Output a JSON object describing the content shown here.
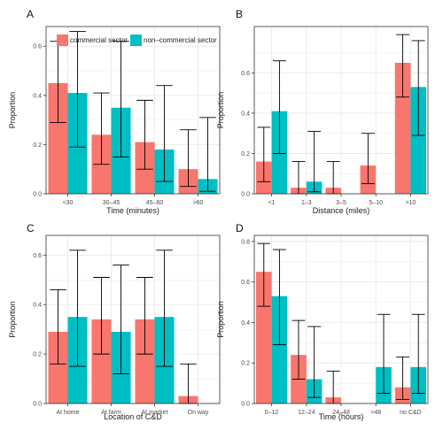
{
  "figure": {
    "legend": {
      "entries": [
        {
          "label": "commercial sector",
          "color": "#F8766D"
        },
        {
          "label": "non–commercial sector",
          "color": "#00BFC4"
        }
      ]
    }
  },
  "colors": {
    "commercial": "#F8766D",
    "noncommercial": "#00BFC4",
    "panel_bg": "#FFFFFF",
    "grid": "#EBEBEB",
    "border": "#333333"
  },
  "chart_data": [
    {
      "panel": "A",
      "type": "bar",
      "xlabel": "Time (minutes)",
      "ylabel": "Proportion",
      "ylim": [
        0,
        0.68
      ],
      "yticks": [
        0.0,
        0.2,
        0.4,
        0.6
      ],
      "ytick_labels": [
        "0.0",
        "0.2",
        "0.4",
        "0.6"
      ],
      "categories": [
        "<30",
        "30–45",
        "45–60",
        ">60"
      ],
      "series": [
        {
          "name": "commercial sector",
          "values": [
            0.45,
            0.24,
            0.21,
            0.1
          ],
          "err_low": [
            0.29,
            0.12,
            0.1,
            0.03
          ],
          "err_high": [
            0.62,
            0.41,
            0.38,
            0.26
          ]
        },
        {
          "name": "non–commercial sector",
          "values": [
            0.41,
            0.35,
            0.18,
            0.06
          ],
          "err_low": [
            0.19,
            0.15,
            0.05,
            0.01
          ],
          "err_high": [
            0.66,
            0.62,
            0.44,
            0.31
          ]
        }
      ],
      "legend": "top-left"
    },
    {
      "panel": "B",
      "type": "bar",
      "xlabel": "Distance (miles)",
      "ylabel": "Proportion",
      "ylim": [
        0,
        0.83
      ],
      "yticks": [
        0.0,
        0.2,
        0.4,
        0.6
      ],
      "ytick_labels": [
        "0.0",
        "0.2",
        "0.4",
        "0.6"
      ],
      "categories": [
        "<1",
        "1–3",
        "3–5",
        "5–10",
        ">10"
      ],
      "series": [
        {
          "name": "commercial sector",
          "values": [
            0.16,
            0.03,
            0.03,
            0.14,
            0.65
          ],
          "err_low": [
            0.06,
            0.0,
            0.0,
            0.05,
            0.48
          ],
          "err_high": [
            0.33,
            0.16,
            0.16,
            0.3,
            0.79
          ]
        },
        {
          "name": "non–commercial sector",
          "values": [
            0.41,
            0.06,
            null,
            null,
            0.53
          ],
          "err_low": [
            0.2,
            0.01,
            null,
            null,
            0.29
          ],
          "err_high": [
            0.66,
            0.31,
            null,
            null,
            0.76
          ]
        }
      ]
    },
    {
      "panel": "C",
      "type": "bar",
      "xlabel": "Location of C&D",
      "ylabel": "Proportion",
      "ylim": [
        0,
        0.68
      ],
      "yticks": [
        0.0,
        0.2,
        0.4,
        0.6
      ],
      "ytick_labels": [
        "0.0",
        "0.2",
        "0.4",
        "0.6"
      ],
      "categories": [
        "At home",
        "At farm",
        "At market",
        "On way"
      ],
      "series": [
        {
          "name": "commercial sector",
          "values": [
            0.29,
            0.34,
            0.34,
            0.03
          ],
          "err_low": [
            0.16,
            0.2,
            0.2,
            0.0
          ],
          "err_high": [
            0.46,
            0.51,
            0.51,
            0.16
          ]
        },
        {
          "name": "non–commercial sector",
          "values": [
            0.35,
            0.29,
            0.35,
            null
          ],
          "err_low": [
            0.15,
            0.12,
            0.15,
            null
          ],
          "err_high": [
            0.62,
            0.56,
            0.62,
            null
          ]
        }
      ]
    },
    {
      "panel": "D",
      "type": "bar",
      "xlabel": "Time (hours)",
      "ylabel": "Proportion",
      "ylim": [
        0,
        0.83
      ],
      "yticks": [
        0.0,
        0.2,
        0.4,
        0.6,
        0.8
      ],
      "ytick_labels": [
        "0.0",
        "0.2",
        "0.4",
        "0.6",
        "0.8"
      ],
      "categories": [
        "0–12",
        "12–24",
        "24–48",
        ">48",
        "no C&D"
      ],
      "series": [
        {
          "name": "commercial sector",
          "values": [
            0.65,
            0.24,
            0.03,
            null,
            0.08
          ],
          "err_low": [
            0.48,
            0.12,
            0.0,
            null,
            0.02
          ],
          "err_high": [
            0.79,
            0.41,
            0.16,
            null,
            0.23
          ]
        },
        {
          "name": "non–commercial sector",
          "values": [
            0.53,
            0.12,
            null,
            0.18,
            0.18
          ],
          "err_low": [
            0.29,
            0.03,
            null,
            0.05,
            0.05
          ],
          "err_high": [
            0.76,
            0.38,
            null,
            0.44,
            0.44
          ]
        }
      ]
    }
  ]
}
